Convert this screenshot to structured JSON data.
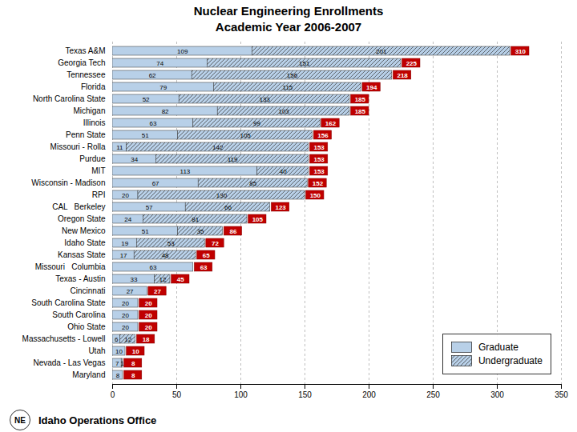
{
  "chart_data": {
    "type": "bar",
    "orientation": "horizontal",
    "stacked": true,
    "title": "Nuclear Engineering Enrollments\nAcademic Year 2006-2007",
    "categories": [
      "Texas A&M",
      "Georgia Tech",
      "Tennessee",
      "Florida",
      "North Carolina State",
      "Michigan",
      "Illinois",
      "Penn State",
      "Missouri - Rolla",
      "Purdue",
      "MIT",
      "Wisconsin - Madison",
      "RPI",
      "CAL   Berkeley",
      "Oregon State",
      "New Mexico",
      "Idaho State",
      "Kansas State",
      "Missouri   Columbia",
      "Texas - Austin",
      "Cincinnati",
      "South Carolina State",
      "South Carolina",
      "Ohio State",
      "Massachusetts - Lowell",
      "Utah",
      "Nevada - Las Vegas",
      "Maryland"
    ],
    "series": [
      {
        "name": "Graduate",
        "color": "#b8d0e8",
        "values": [
          109,
          74,
          62,
          79,
          52,
          82,
          63,
          51,
          11,
          34,
          113,
          67,
          20,
          57,
          24,
          51,
          19,
          17,
          63,
          33,
          27,
          20,
          20,
          20,
          6,
          10,
          7,
          8
        ]
      },
      {
        "name": "Undergraduate",
        "color": "#b8d0e8",
        "values": [
          201,
          151,
          156,
          115,
          133,
          103,
          99,
          105,
          142,
          119,
          40,
          85,
          130,
          66,
          81,
          35,
          53,
          48,
          0,
          12,
          0,
          0,
          0,
          0,
          12,
          0,
          1,
          0
        ]
      }
    ],
    "totals": {
      "color": "#c00000",
      "values": [
        310,
        225,
        218,
        194,
        185,
        185,
        162,
        156,
        153,
        153,
        153,
        152,
        150,
        123,
        105,
        86,
        72,
        65,
        63,
        45,
        27,
        20,
        20,
        20,
        18,
        10,
        8,
        8
      ]
    },
    "xlim": [
      0,
      350
    ],
    "xticks": [
      0,
      50,
      100,
      150,
      200,
      250,
      300,
      350
    ],
    "grid": true,
    "legend": "lower right",
    "data_labels": true,
    "annotations": [
      "NE",
      "Idaho Operations Office"
    ]
  }
}
